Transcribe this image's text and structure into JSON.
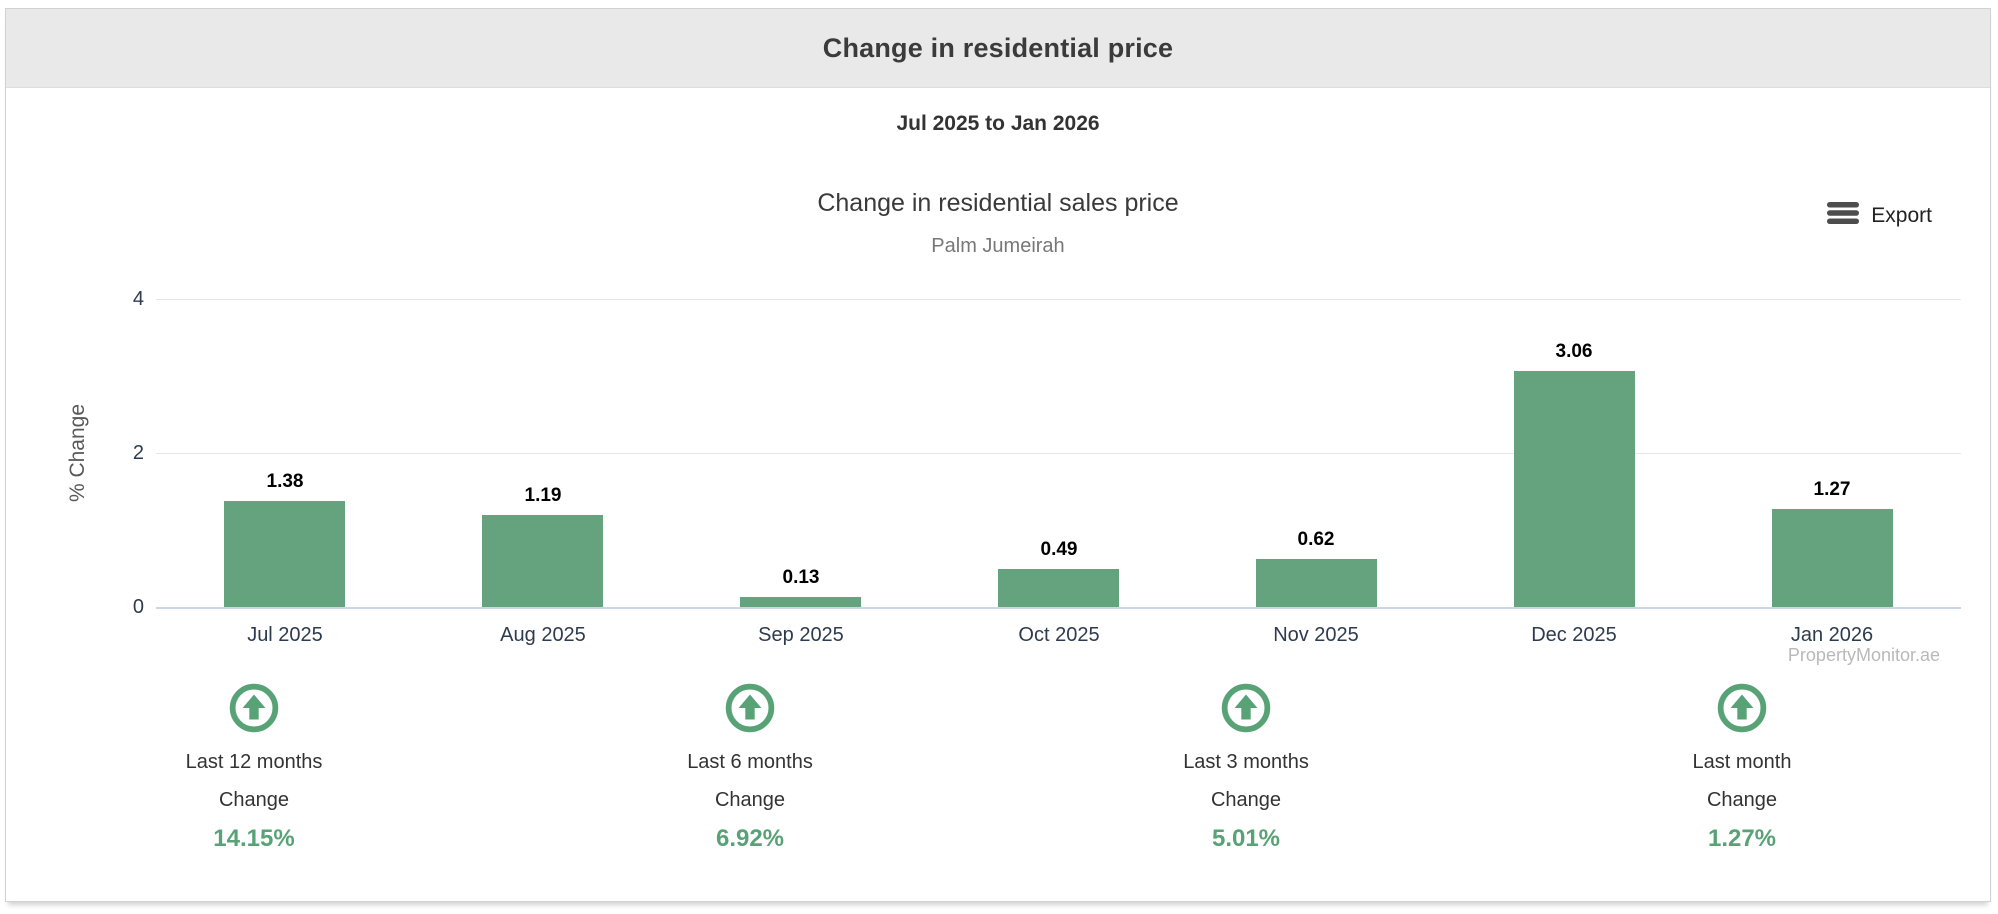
{
  "page": {
    "title": "Change in residential price",
    "date_range": "Jul 2025 to Jan 2026"
  },
  "chart": {
    "title": "Change in residential sales price",
    "subtitle": "Palm Jumeirah",
    "export_label": "Export",
    "watermark": "PropertyMonitor.ae"
  },
  "chart_data": {
    "type": "bar",
    "title": "Change in residential sales price",
    "subtitle": "Palm Jumeirah",
    "categories": [
      "Jul 2025",
      "Aug 2025",
      "Sep 2025",
      "Oct 2025",
      "Nov 2025",
      "Dec 2025",
      "Jan 2026"
    ],
    "values": [
      1.38,
      1.19,
      0.13,
      0.49,
      0.62,
      3.06,
      1.27
    ],
    "xlabel": "",
    "ylabel": "% Change",
    "ylim": [
      0,
      4
    ],
    "yticks": [
      0,
      2,
      4
    ],
    "grid": true,
    "legend": "none",
    "bar_color": "#65a27e"
  },
  "summary": {
    "items": [
      {
        "icon": "arrow-up-circle",
        "label": "Last 12 months",
        "sublabel": "Change",
        "value": "14.15%"
      },
      {
        "icon": "arrow-up-circle",
        "label": "Last 6 months",
        "sublabel": "Change",
        "value": "6.92%"
      },
      {
        "icon": "arrow-up-circle",
        "label": "Last 3 months",
        "sublabel": "Change",
        "value": "5.01%"
      },
      {
        "icon": "arrow-up-circle",
        "label": "Last month",
        "sublabel": "Change",
        "value": "1.27%"
      }
    ]
  },
  "colors": {
    "accent_green": "#57a376",
    "bar_green": "#65a27e",
    "header_bg": "#e9e9ea",
    "axis_line_blue": "#ccd6eb",
    "grid_line": "#e6e6e6",
    "axis_label": "#2e3a4e"
  }
}
